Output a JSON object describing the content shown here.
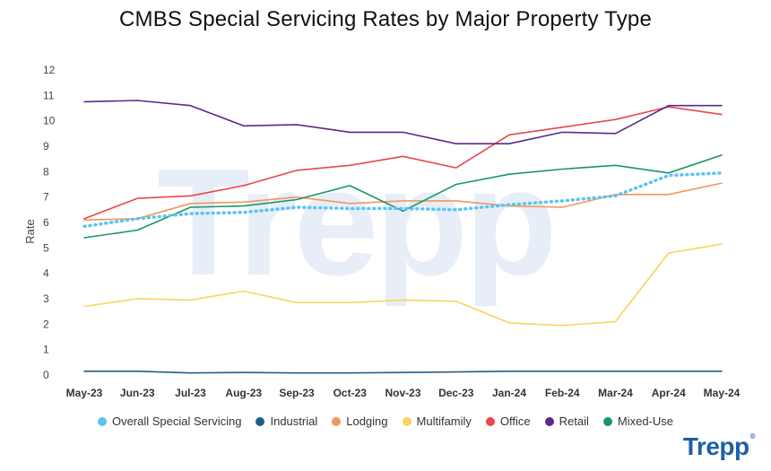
{
  "chart_data": {
    "type": "line",
    "title": "CMBS Special Servicing Rates by Major Property Type",
    "xlabel": "",
    "ylabel": "Rate",
    "ylim": [
      0,
      12
    ],
    "yticks": [
      0,
      1,
      2,
      3,
      4,
      5,
      6,
      7,
      8,
      9,
      10,
      11,
      12
    ],
    "categories": [
      "May-23",
      "Jun-23",
      "Jul-23",
      "Aug-23",
      "Sep-23",
      "Oct-23",
      "Nov-23",
      "Dec-23",
      "Jan-24",
      "Feb-24",
      "Mar-24",
      "Apr-24",
      "May-24"
    ],
    "legend_position": "bottom",
    "series": [
      {
        "name": "Overall Special Servicing",
        "color": "#5bc4f0",
        "dashed": true,
        "values": [
          5.85,
          6.15,
          6.35,
          6.4,
          6.6,
          6.55,
          6.55,
          6.5,
          6.7,
          6.85,
          7.05,
          7.85,
          7.95
        ]
      },
      {
        "name": "Industrial",
        "color": "#1f5f8b",
        "values": [
          0.15,
          0.15,
          0.08,
          0.1,
          0.08,
          0.08,
          0.1,
          0.12,
          0.15,
          0.15,
          0.15,
          0.15,
          0.15
        ]
      },
      {
        "name": "Lodging",
        "color": "#f0975a",
        "values": [
          6.1,
          6.15,
          6.75,
          6.8,
          7.0,
          6.75,
          6.85,
          6.85,
          6.65,
          6.6,
          7.1,
          7.1,
          7.55
        ]
      },
      {
        "name": "Multifamily",
        "color": "#f8d35e",
        "values": [
          2.7,
          3.0,
          2.95,
          3.3,
          2.85,
          2.85,
          2.95,
          2.9,
          2.05,
          1.95,
          2.1,
          4.8,
          5.15
        ]
      },
      {
        "name": "Office",
        "color": "#e8474c",
        "values": [
          6.15,
          6.95,
          7.05,
          7.45,
          8.05,
          8.25,
          8.6,
          8.15,
          9.45,
          9.75,
          10.05,
          10.55,
          10.25
        ]
      },
      {
        "name": "Retail",
        "color": "#5b2a86",
        "values": [
          10.75,
          10.8,
          10.6,
          9.8,
          9.85,
          9.55,
          9.55,
          9.1,
          9.1,
          9.55,
          9.5,
          10.6,
          10.6
        ]
      },
      {
        "name": "Mixed-Use",
        "color": "#17966b",
        "values": [
          5.4,
          5.7,
          6.6,
          6.65,
          6.9,
          7.45,
          6.45,
          7.5,
          7.9,
          8.1,
          8.25,
          7.95,
          8.65
        ]
      }
    ]
  },
  "brand": {
    "logo_text": "Trepp",
    "logo_mark": "®",
    "watermark_text": "Trepp"
  }
}
